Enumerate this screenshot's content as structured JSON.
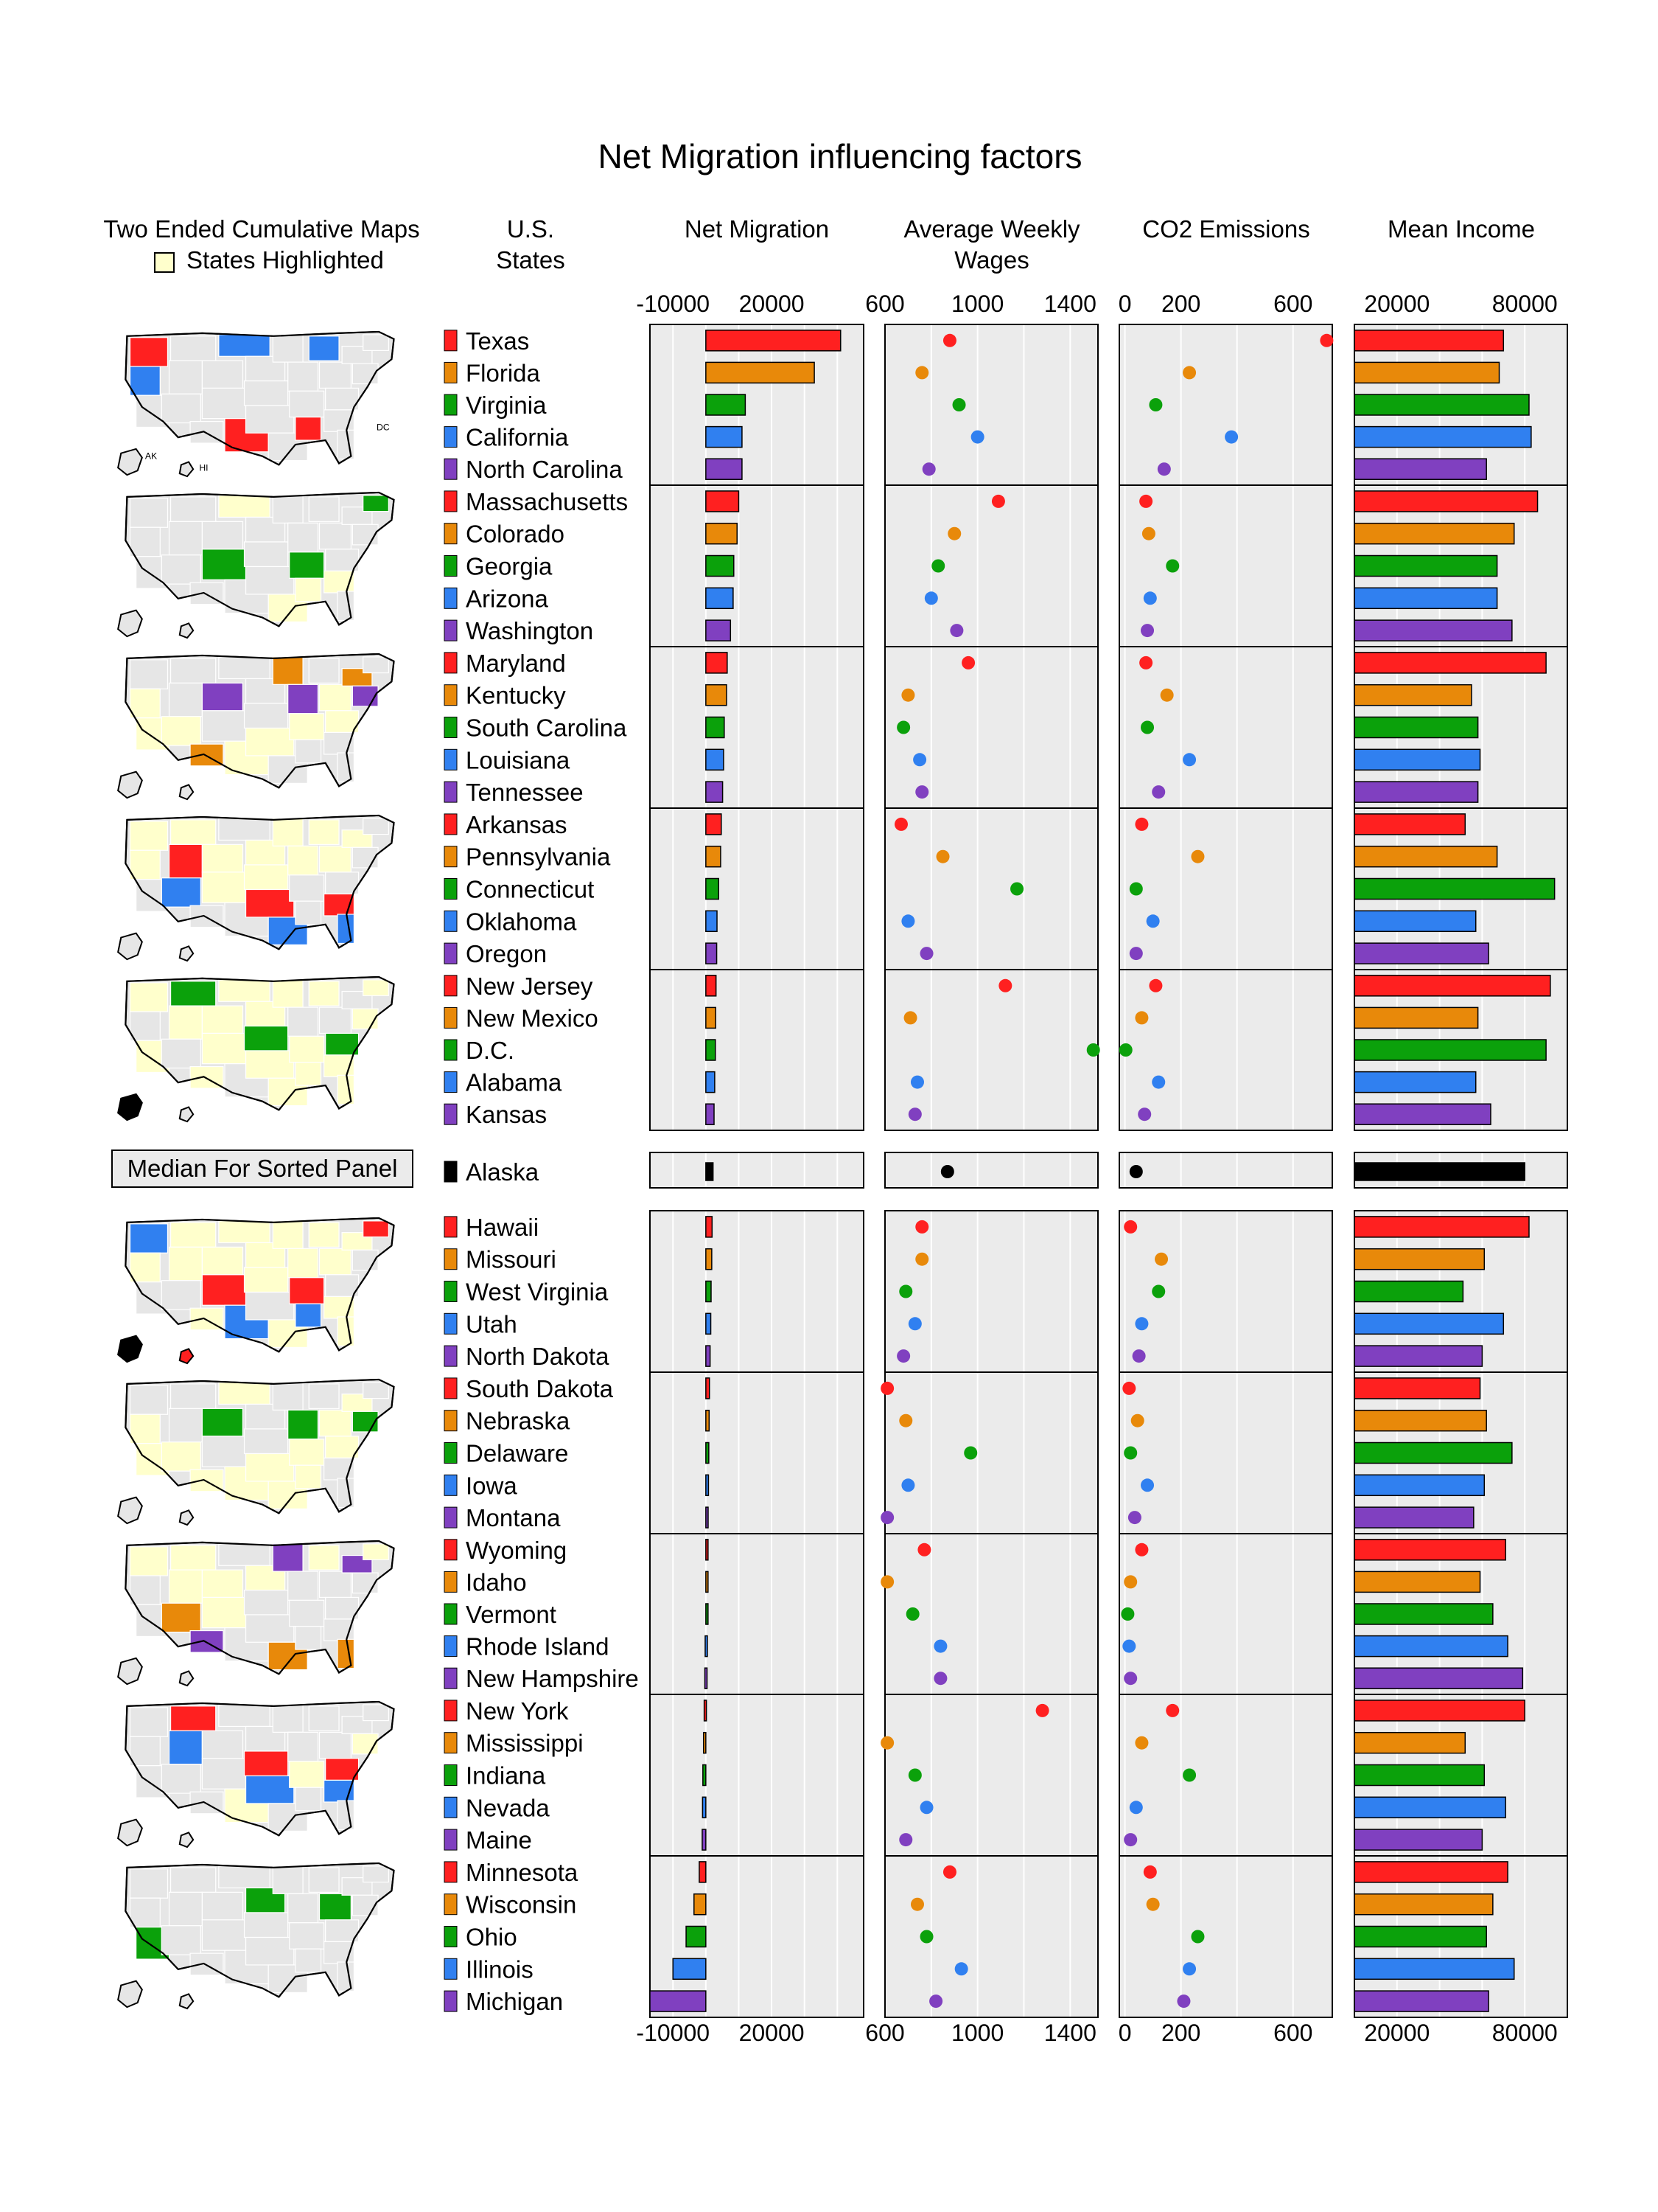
{
  "title": "Net Migration influencing factors",
  "headers": {
    "maps": [
      "Two Ended Cumulative Maps",
      "States Highlighted"
    ],
    "states": [
      "U.S.",
      "States"
    ],
    "net_migration": [
      "Net Migration"
    ],
    "wages": [
      "Average Weekly",
      "Wages"
    ],
    "co2": [
      "CO2 Emissions"
    ],
    "income": [
      "Mean Income"
    ]
  },
  "median_label": "Median For Sorted Panel",
  "map_labels": [
    "AK",
    "HI",
    "DC"
  ],
  "colors": {
    "group": [
      "#FF2020",
      "#E8890A",
      "#0BA10B",
      "#3080F0",
      "#8040C0"
    ],
    "median": "#000000",
    "panel_bg": "#EBEBEB",
    "highlighted_state": "#FFFFCC",
    "map_background": "#E6E6E6"
  },
  "chart_data": {
    "type": "micromap",
    "columns": [
      {
        "key": "net_migration",
        "type": "bar",
        "xlim": [
          -17000,
          48000
        ],
        "ticks": [
          "-10000",
          "20000"
        ]
      },
      {
        "key": "wages",
        "type": "dot",
        "xlim": [
          600,
          1520
        ],
        "ticks": [
          "600",
          "1000",
          "1400"
        ]
      },
      {
        "key": "co2",
        "type": "dot",
        "xlim": [
          -20,
          740
        ],
        "ticks": [
          "0",
          "200",
          "600"
        ]
      },
      {
        "key": "income",
        "type": "bar",
        "xlim": [
          0,
          100000
        ],
        "ticks": [
          "20000",
          "80000"
        ]
      }
    ],
    "groups": [
      [
        {
          "state": "Texas",
          "net_migration": 41000,
          "wages": 880,
          "co2": 720,
          "income": 70000
        },
        {
          "state": "Florida",
          "net_migration": 33000,
          "wages": 760,
          "co2": 230,
          "income": 68000
        },
        {
          "state": "Virginia",
          "net_migration": 12000,
          "wages": 920,
          "co2": 110,
          "income": 82000
        },
        {
          "state": "California",
          "net_migration": 11000,
          "wages": 1000,
          "co2": 380,
          "income": 83000
        },
        {
          "state": "North Carolina",
          "net_migration": 11000,
          "wages": 790,
          "co2": 140,
          "income": 62000
        }
      ],
      [
        {
          "state": "Massachusetts",
          "net_migration": 10000,
          "wages": 1090,
          "co2": 75,
          "income": 86000
        },
        {
          "state": "Colorado",
          "net_migration": 9500,
          "wages": 900,
          "co2": 85,
          "income": 75000
        },
        {
          "state": "Georgia",
          "net_migration": 8500,
          "wages": 830,
          "co2": 170,
          "income": 67000
        },
        {
          "state": "Arizona",
          "net_migration": 8300,
          "wages": 800,
          "co2": 90,
          "income": 67000
        },
        {
          "state": "Washington",
          "net_migration": 7500,
          "wages": 910,
          "co2": 80,
          "income": 74000
        }
      ],
      [
        {
          "state": "Maryland",
          "net_migration": 6500,
          "wages": 960,
          "co2": 75,
          "income": 90000
        },
        {
          "state": "Kentucky",
          "net_migration": 6300,
          "wages": 700,
          "co2": 150,
          "income": 55000
        },
        {
          "state": "South Carolina",
          "net_migration": 5600,
          "wages": 680,
          "co2": 80,
          "income": 58000
        },
        {
          "state": "Louisiana",
          "net_migration": 5400,
          "wages": 750,
          "co2": 230,
          "income": 59000
        },
        {
          "state": "Tennessee",
          "net_migration": 5100,
          "wages": 760,
          "co2": 120,
          "income": 58000
        }
      ],
      [
        {
          "state": "Arkansas",
          "net_migration": 4700,
          "wages": 670,
          "co2": 60,
          "income": 52000
        },
        {
          "state": "Pennsylvania",
          "net_migration": 4500,
          "wages": 850,
          "co2": 260,
          "income": 67000
        },
        {
          "state": "Connecticut",
          "net_migration": 3900,
          "wages": 1170,
          "co2": 40,
          "income": 94000
        },
        {
          "state": "Oklahoma",
          "net_migration": 3400,
          "wages": 700,
          "co2": 100,
          "income": 57000
        },
        {
          "state": "Oregon",
          "net_migration": 3300,
          "wages": 780,
          "co2": 40,
          "income": 63000
        }
      ],
      [
        {
          "state": "New Jersey",
          "net_migration": 3100,
          "wages": 1120,
          "co2": 110,
          "income": 92000
        },
        {
          "state": "New Mexico",
          "net_migration": 3000,
          "wages": 710,
          "co2": 60,
          "income": 58000
        },
        {
          "state": "D.C.",
          "net_migration": 2900,
          "wages": 1500,
          "co2": 3,
          "income": 90000
        },
        {
          "state": "Alabama",
          "net_migration": 2700,
          "wages": 740,
          "co2": 120,
          "income": 57000
        },
        {
          "state": "Kansas",
          "net_migration": 2500,
          "wages": 730,
          "co2": 70,
          "income": 64000
        }
      ],
      [
        {
          "state": "Alaska",
          "net_migration": 2200,
          "wages": 870,
          "co2": 40,
          "income": 80000
        }
      ],
      [
        {
          "state": "Hawaii",
          "net_migration": 1900,
          "wages": 760,
          "co2": 20,
          "income": 82000
        },
        {
          "state": "Missouri",
          "net_migration": 1800,
          "wages": 760,
          "co2": 130,
          "income": 61000
        },
        {
          "state": "West Virginia",
          "net_migration": 1600,
          "wages": 690,
          "co2": 120,
          "income": 51000
        },
        {
          "state": "Utah",
          "net_migration": 1500,
          "wages": 730,
          "co2": 60,
          "income": 70000
        },
        {
          "state": "North Dakota",
          "net_migration": 1300,
          "wages": 680,
          "co2": 50,
          "income": 60000
        }
      ],
      [
        {
          "state": "South Dakota",
          "net_migration": 1100,
          "wages": 610,
          "co2": 15,
          "income": 59000
        },
        {
          "state": "Nebraska",
          "net_migration": 1000,
          "wages": 690,
          "co2": 45,
          "income": 62000
        },
        {
          "state": "Delaware",
          "net_migration": 900,
          "wages": 970,
          "co2": 20,
          "income": 74000
        },
        {
          "state": "Iowa",
          "net_migration": 800,
          "wages": 700,
          "co2": 80,
          "income": 61000
        },
        {
          "state": "Montana",
          "net_migration": 700,
          "wages": 610,
          "co2": 35,
          "income": 56000
        }
      ],
      [
        {
          "state": "Wyoming",
          "net_migration": 300,
          "wages": 770,
          "co2": 60,
          "income": 71000
        },
        {
          "state": "Idaho",
          "net_migration": 200,
          "wages": 610,
          "co2": 20,
          "income": 59000
        },
        {
          "state": "Vermont",
          "net_migration": 100,
          "wages": 720,
          "co2": 10,
          "income": 65000
        },
        {
          "state": "Rhode Island",
          "net_migration": -200,
          "wages": 840,
          "co2": 15,
          "income": 72000
        },
        {
          "state": "New Hampshire",
          "net_migration": -300,
          "wages": 840,
          "co2": 20,
          "income": 79000
        }
      ],
      [
        {
          "state": "New York",
          "net_migration": -500,
          "wages": 1280,
          "co2": 170,
          "income": 80000
        },
        {
          "state": "Mississippi",
          "net_migration": -700,
          "wages": 610,
          "co2": 60,
          "income": 52000
        },
        {
          "state": "Indiana",
          "net_migration": -900,
          "wages": 730,
          "co2": 230,
          "income": 61000
        },
        {
          "state": "Nevada",
          "net_migration": -1000,
          "wages": 780,
          "co2": 40,
          "income": 71000
        },
        {
          "state": "Maine",
          "net_migration": -1100,
          "wages": 690,
          "co2": 20,
          "income": 60000
        }
      ],
      [
        {
          "state": "Minnesota",
          "net_migration": -2000,
          "wages": 880,
          "co2": 90,
          "income": 72000
        },
        {
          "state": "Wisconsin",
          "net_migration": -3600,
          "wages": 740,
          "co2": 100,
          "income": 65000
        },
        {
          "state": "Ohio",
          "net_migration": -6000,
          "wages": 780,
          "co2": 260,
          "income": 62000
        },
        {
          "state": "Illinois",
          "net_migration": -10000,
          "wages": 930,
          "co2": 230,
          "income": 75000
        },
        {
          "state": "Michigan",
          "net_migration": -17000,
          "wages": 820,
          "co2": 210,
          "income": 63000
        }
      ]
    ]
  }
}
